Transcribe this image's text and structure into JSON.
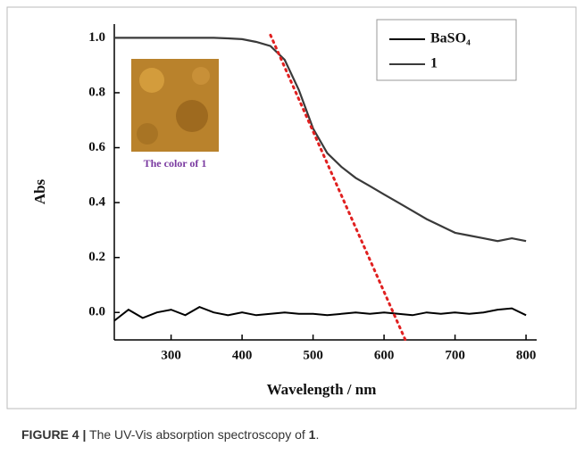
{
  "chart_data": {
    "type": "line",
    "xlabel": "Wavelength / nm",
    "ylabel": "Abs",
    "x": [
      220,
      240,
      260,
      280,
      300,
      320,
      340,
      360,
      380,
      400,
      420,
      440,
      460,
      480,
      500,
      520,
      540,
      560,
      580,
      600,
      620,
      640,
      660,
      680,
      700,
      720,
      740,
      760,
      780,
      800
    ],
    "series": [
      {
        "name": "BaSO₄",
        "color": "#000000",
        "values": [
          -0.03,
          0.01,
          -0.02,
          0.0,
          0.01,
          -0.01,
          0.02,
          0.0,
          -0.01,
          0.0,
          -0.01,
          -0.005,
          0,
          -0.005,
          -0.005,
          -0.01,
          -0.005,
          0,
          -0.005,
          0,
          -0.005,
          -0.01,
          0,
          -0.005,
          0,
          -0.005,
          0,
          0.01,
          0.015,
          -0.01
        ]
      },
      {
        "name": "1",
        "color": "#3a3a3a",
        "values": [
          1.0,
          1.0,
          1.0,
          1.0,
          1.0,
          1.0,
          1.0,
          1.0,
          0.998,
          0.995,
          0.985,
          0.97,
          0.92,
          0.81,
          0.67,
          0.58,
          0.53,
          0.49,
          0.46,
          0.43,
          0.4,
          0.37,
          0.34,
          0.315,
          0.29,
          0.28,
          0.27,
          0.26,
          0.27,
          0.26
        ]
      }
    ],
    "tangent_line": {
      "x": [
        440,
        630
      ],
      "y": [
        1.01,
        -0.1
      ],
      "color": "#e02020"
    },
    "xlim": [
      220,
      815
    ],
    "xticks": [
      300,
      400,
      500,
      600,
      700,
      800
    ],
    "ylim": [
      -0.1,
      1.05
    ],
    "yticks": [
      {
        "value": 0,
        "label": "0.0"
      },
      0.2,
      0.4,
      0.6,
      0.8,
      {
        "value": 1,
        "label": "1.0"
      }
    ],
    "inset_caption": "The  color of 1",
    "caption": {
      "label": "FIGURE 4 |",
      "text": " The UV-Vis absorption spectroscopy of ",
      "compound": "1",
      "end": "."
    }
  }
}
